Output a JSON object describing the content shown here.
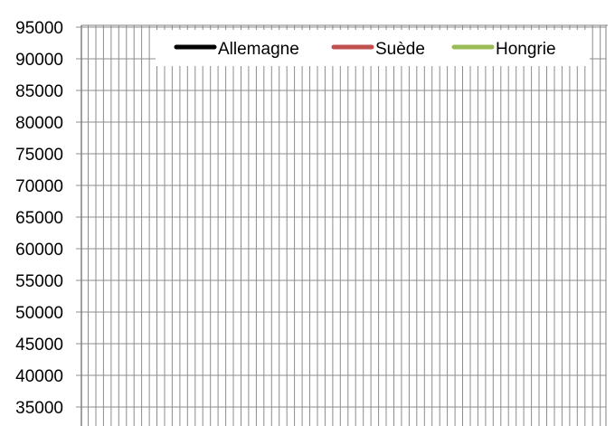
{
  "chart_data": {
    "type": "line",
    "title": "",
    "xlabel": "",
    "ylabel": "",
    "ylim": [
      35000,
      95000
    ],
    "y_ticks": [
      "95000",
      "90000",
      "85000",
      "80000",
      "75000",
      "70000",
      "65000",
      "60000",
      "55000",
      "50000",
      "45000",
      "40000",
      "35000"
    ],
    "grid": {
      "horizontal": true,
      "vertical": true
    },
    "legend_position": "top",
    "series": [
      {
        "name": "Allemagne",
        "color": "#000000",
        "values": []
      },
      {
        "name": "Suède",
        "color": "#c0504d",
        "values": []
      },
      {
        "name": "Hongrie",
        "color": "#9bbb59",
        "values": []
      }
    ]
  }
}
